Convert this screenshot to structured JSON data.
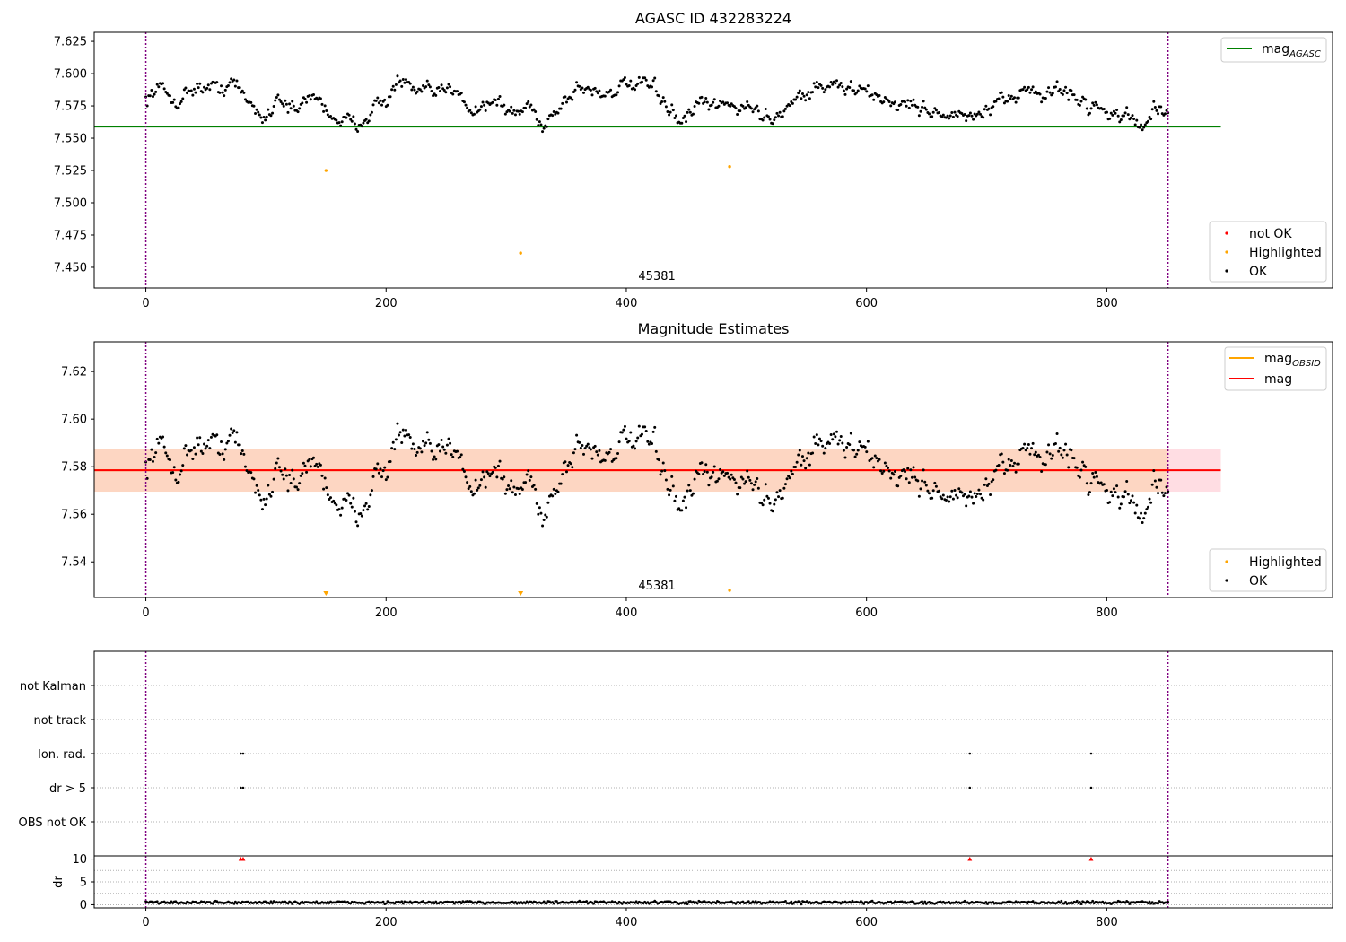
{
  "chart_data": [
    {
      "type": "scatter",
      "title": "AGASC ID 432283224",
      "xlabel": "",
      "ylabel": "",
      "xlim": [
        -43,
        988
      ],
      "ylim": [
        7.434,
        7.632
      ],
      "xticks": [
        0,
        200,
        400,
        600,
        800
      ],
      "yticks": [
        7.45,
        7.475,
        7.5,
        7.525,
        7.55,
        7.575,
        7.6,
        7.625
      ],
      "ytick_labels": [
        "7.450",
        "7.475",
        "7.500",
        "7.525",
        "7.550",
        "7.575",
        "7.600",
        "7.625"
      ],
      "obs_boundaries": [
        0,
        851
      ],
      "obsid_label": {
        "text": "45381",
        "x": 425.5
      },
      "reference_lines": [
        {
          "name": "mag_AGASC",
          "value": 7.559,
          "x": [
            -43,
            895
          ],
          "color": "#008000"
        }
      ],
      "legend_lines": [
        {
          "label": "mag",
          "sub": "AGASC",
          "color": "#008000"
        }
      ],
      "legend_markers": [
        {
          "label": "not OK",
          "color": "#ff0000"
        },
        {
          "label": "Highlighted",
          "color": "#ffa500"
        },
        {
          "label": "OK",
          "color": "#000000"
        }
      ],
      "highlighted": [
        {
          "x": 150,
          "y": 7.525
        },
        {
          "x": 312,
          "y": 7.461
        },
        {
          "x": 486,
          "y": 7.528
        }
      ],
      "ok_series": {
        "x_start": 0,
        "x_end": 851,
        "n": 720,
        "anchors": [
          [
            0,
            7.58
          ],
          [
            10,
            7.59
          ],
          [
            25,
            7.578
          ],
          [
            40,
            7.59
          ],
          [
            60,
            7.588
          ],
          [
            72,
            7.594
          ],
          [
            85,
            7.578
          ],
          [
            100,
            7.565
          ],
          [
            110,
            7.584
          ],
          [
            125,
            7.57
          ],
          [
            140,
            7.585
          ],
          [
            150,
            7.572
          ],
          [
            160,
            7.565
          ],
          [
            175,
            7.56
          ],
          [
            190,
            7.575
          ],
          [
            200,
            7.578
          ],
          [
            210,
            7.595
          ],
          [
            225,
            7.585
          ],
          [
            245,
            7.585
          ],
          [
            262,
            7.59
          ],
          [
            270,
            7.57
          ],
          [
            280,
            7.575
          ],
          [
            290,
            7.58
          ],
          [
            305,
            7.568
          ],
          [
            320,
            7.575
          ],
          [
            330,
            7.56
          ],
          [
            345,
            7.575
          ],
          [
            360,
            7.59
          ],
          [
            380,
            7.585
          ],
          [
            400,
            7.59
          ],
          [
            420,
            7.59
          ],
          [
            435,
            7.575
          ],
          [
            445,
            7.56
          ],
          [
            460,
            7.575
          ],
          [
            480,
            7.575
          ],
          [
            500,
            7.575
          ],
          [
            520,
            7.565
          ],
          [
            540,
            7.58
          ],
          [
            560,
            7.59
          ],
          [
            580,
            7.59
          ],
          [
            600,
            7.585
          ],
          [
            620,
            7.578
          ],
          [
            640,
            7.575
          ],
          [
            660,
            7.57
          ],
          [
            680,
            7.565
          ],
          [
            700,
            7.57
          ],
          [
            720,
            7.58
          ],
          [
            735,
            7.592
          ],
          [
            745,
            7.58
          ],
          [
            760,
            7.59
          ],
          [
            775,
            7.58
          ],
          [
            790,
            7.575
          ],
          [
            805,
            7.57
          ],
          [
            820,
            7.565
          ],
          [
            830,
            7.56
          ],
          [
            840,
            7.575
          ],
          [
            851,
            7.566
          ]
        ],
        "noise": 0.0045
      }
    },
    {
      "type": "scatter",
      "title": "Magnitude Estimates",
      "xlabel": "",
      "ylabel": "",
      "xlim": [
        -43,
        988
      ],
      "ylim": [
        7.525,
        7.6325
      ],
      "xticks": [
        0,
        200,
        400,
        600,
        800
      ],
      "yticks": [
        7.54,
        7.56,
        7.58,
        7.6,
        7.62
      ],
      "ytick_labels": [
        "7.54",
        "7.56",
        "7.58",
        "7.60",
        "7.62"
      ],
      "obs_boundaries": [
        0,
        851
      ],
      "obsid_label": {
        "text": "45381",
        "x": 425.5
      },
      "bands": [
        {
          "name": "mag range",
          "y0": 7.5695,
          "y1": 7.5875,
          "x": [
            -43,
            895
          ],
          "color": "#ffdde3"
        },
        {
          "name": "mag_OBSID range",
          "y0": 7.5695,
          "y1": 7.5875,
          "x": [
            -43,
            851
          ],
          "color": "#fdd6c2"
        }
      ],
      "reference_lines": [
        {
          "name": "mag_OBSID",
          "value": 7.5785,
          "x": [
            -43,
            851
          ],
          "color": "#ffa500"
        },
        {
          "name": "mag",
          "value": 7.5785,
          "x": [
            -43,
            895
          ],
          "color": "#ff0000"
        }
      ],
      "legend_lines": [
        {
          "label": "mag",
          "sub": "OBSID",
          "color": "#ffa500"
        },
        {
          "label": "mag",
          "sub": "",
          "color": "#ff0000"
        }
      ],
      "legend_markers": [
        {
          "label": "Highlighted",
          "color": "#ffa500"
        },
        {
          "label": "OK",
          "color": "#000000"
        }
      ],
      "highlighted_markers": [
        {
          "x": 150,
          "y": 7.5265,
          "marker": "triangle-down"
        },
        {
          "x": 312,
          "y": 7.5265,
          "marker": "triangle-down"
        },
        {
          "x": 486,
          "y": 7.528,
          "marker": "point"
        }
      ]
    },
    {
      "type": "scatter",
      "title": "",
      "xlabel": "",
      "ylabel": "",
      "xlim": [
        -43,
        988
      ],
      "category_labels": [
        "not Kalman",
        "not track",
        "Ion. rad.",
        "dr > 5",
        "OBS not OK"
      ],
      "obs_boundaries": [
        0,
        851
      ],
      "flag_points": {
        "Ion. rad.": [
          79,
          81,
          686,
          787
        ],
        "dr > 5": [
          79,
          81,
          686,
          787
        ]
      }
    },
    {
      "type": "scatter",
      "title": "",
      "xlabel": "",
      "ylabel": "dr",
      "xlim": [
        -43,
        988
      ],
      "ylim": [
        -0.7,
        10.7
      ],
      "xticks": [
        0,
        200,
        400,
        600,
        800
      ],
      "yticks": [
        0,
        5,
        10
      ],
      "obs_boundaries": [
        0,
        851
      ],
      "clipped_markers": {
        "y": 10,
        "x": [
          79,
          81,
          686,
          787
        ],
        "color": "#ff0000"
      },
      "dr_series": {
        "x_start": 0,
        "x_end": 851,
        "n": 720,
        "base": 0.5,
        "noise": 0.25
      }
    }
  ],
  "colors": {
    "obs_boundary": "#800080",
    "ok": "#000000",
    "grid": "#b0b0b0"
  }
}
